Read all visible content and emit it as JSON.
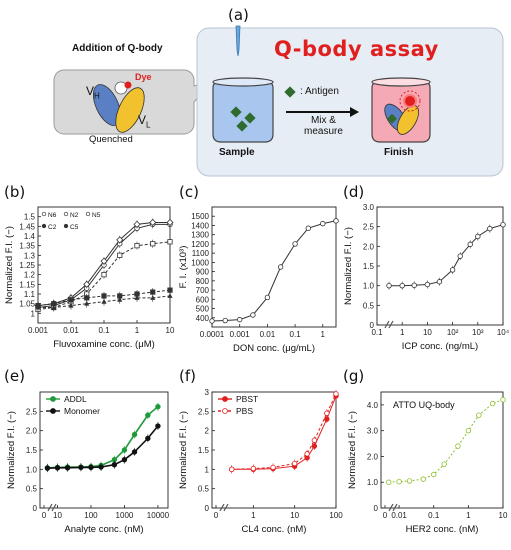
{
  "panel_labels": {
    "a": "(a)",
    "b": "(b)",
    "c": "(c)",
    "d": "(d)",
    "e": "(e)",
    "f": "(f)",
    "g": "(g)"
  },
  "schematic": {
    "addition_label": "Addition of Q-body",
    "vh": "V",
    "vh_sub": "H",
    "vl": "V",
    "vl_sub": "L",
    "dye": "Dye",
    "quenched": "Quenched",
    "title": "Q-body assay",
    "antigen": ": Antigen",
    "step": "Mix &",
    "step2": "measure",
    "sample": "Sample",
    "finish": "Finish",
    "colors": {
      "dye": "#e0201f",
      "vh": "#5b7fc4",
      "vl": "#f2c12e",
      "antigen": "#2f6b2f"
    }
  },
  "chart_data": [
    {
      "panel": "b",
      "type": "scatter",
      "xlabel": "Fluvoxamine conc. (μM)",
      "ylabel": "Normalized F.I. (−)",
      "xscale": "log",
      "xlim": [
        0.001,
        10
      ],
      "ylim": [
        0.95,
        1.55
      ],
      "xticks": [
        "0.001",
        "0.01",
        "0.1",
        "1",
        "10"
      ],
      "yticks": [
        "1",
        "1.05",
        "1.1",
        "1.15",
        "1.2",
        "1.25",
        "1.3",
        "1.35",
        "1.4",
        "1.45",
        "1.5"
      ],
      "legend_position": "top-left",
      "series": [
        {
          "name": "N6",
          "marker": "circle-open",
          "x": [
            0.001,
            0.003,
            0.01,
            0.03,
            0.1,
            0.3,
            1,
            3,
            10
          ],
          "y": [
            1.03,
            1.04,
            1.07,
            1.13,
            1.25,
            1.36,
            1.44,
            1.46,
            1.46
          ]
        },
        {
          "name": "N2",
          "marker": "diamond-open",
          "x": [
            0.001,
            0.003,
            0.01,
            0.03,
            0.1,
            0.3,
            1,
            3,
            10
          ],
          "y": [
            1.04,
            1.05,
            1.08,
            1.15,
            1.27,
            1.38,
            1.46,
            1.47,
            1.47
          ]
        },
        {
          "name": "N5",
          "marker": "square-open",
          "x": [
            0.001,
            0.003,
            0.01,
            0.03,
            0.1,
            0.3,
            1,
            3,
            10
          ],
          "y": [
            1.02,
            1.03,
            1.06,
            1.1,
            1.2,
            1.3,
            1.35,
            1.36,
            1.37
          ]
        },
        {
          "name": "C2",
          "marker": "triangle",
          "x": [
            0.001,
            0.003,
            0.01,
            0.03,
            0.1,
            0.3,
            1,
            3,
            10
          ],
          "y": [
            1.03,
            1.03,
            1.04,
            1.05,
            1.06,
            1.07,
            1.08,
            1.08,
            1.09
          ]
        },
        {
          "name": "C5",
          "marker": "square",
          "x": [
            0.001,
            0.003,
            0.01,
            0.03,
            0.1,
            0.3,
            1,
            3,
            10
          ],
          "y": [
            1.04,
            1.05,
            1.07,
            1.08,
            1.09,
            1.09,
            1.1,
            1.11,
            1.12
          ]
        }
      ]
    },
    {
      "panel": "c",
      "type": "line",
      "xlabel": "DON conc. (μg/mL)",
      "ylabel": "F. I. (x10³)",
      "xscale": "log",
      "xlim": [
        0.0001,
        3
      ],
      "ylim": [
        300,
        1600
      ],
      "xticks": [
        "0.0001",
        "0.001",
        "0.01",
        "0.1",
        "1"
      ],
      "yticks": [
        "400",
        "500",
        "600",
        "700",
        "800",
        "900",
        "1000",
        "1100",
        "1200",
        "1300",
        "1400",
        "1500"
      ],
      "x": [
        0.0001,
        0.0003,
        0.001,
        0.003,
        0.01,
        0.03,
        0.1,
        0.3,
        1,
        3
      ],
      "y": [
        365,
        370,
        380,
        430,
        620,
        950,
        1200,
        1370,
        1420,
        1450
      ]
    },
    {
      "panel": "d",
      "type": "scatter",
      "xlabel": "ICP conc. (ng/mL)",
      "ylabel": "Normalized F.I. (−)",
      "xscale": "log",
      "xlim": [
        0.1,
        10000
      ],
      "ylim": [
        0,
        3
      ],
      "xticks": [
        "0.1",
        "1",
        "10",
        "10²",
        "10³",
        "10⁴"
      ],
      "yticks": [
        "0",
        "0.5",
        "1.0",
        "1.5",
        "2.0",
        "2.5",
        "3.0"
      ],
      "axis_break": true,
      "x": [
        0.3,
        1,
        3,
        10,
        30,
        100,
        200,
        500,
        1000,
        3000,
        10000
      ],
      "y": [
        1.0,
        1.0,
        1.01,
        1.03,
        1.1,
        1.4,
        1.75,
        2.05,
        2.25,
        2.45,
        2.55
      ]
    },
    {
      "panel": "e",
      "type": "line",
      "xlabel": "Analyte conc. (nM)",
      "ylabel": "Normalized F.I. (−)",
      "xscale": "log",
      "xlim": [
        3,
        20000
      ],
      "ylim": [
        0,
        3
      ],
      "xticks": [
        "0",
        "10",
        "100",
        "1000",
        "10000"
      ],
      "yticks": [
        "0",
        "0.5",
        "1.0",
        "1.5",
        "2.0",
        "2.5"
      ],
      "axis_break": true,
      "legend_position": "top-left",
      "series": [
        {
          "name": "ADDL",
          "color": "#1e9a3a",
          "x": [
            5,
            10,
            20,
            50,
            100,
            200,
            500,
            1000,
            2000,
            5000,
            10000
          ],
          "y": [
            1.04,
            1.05,
            1.06,
            1.06,
            1.07,
            1.1,
            1.25,
            1.5,
            1.9,
            2.4,
            2.62
          ]
        },
        {
          "name": "Monomer",
          "color": "#111111",
          "x": [
            5,
            10,
            20,
            50,
            100,
            200,
            500,
            1000,
            2000,
            5000,
            10000
          ],
          "y": [
            1.03,
            1.04,
            1.04,
            1.05,
            1.05,
            1.06,
            1.12,
            1.25,
            1.45,
            1.8,
            2.12
          ]
        }
      ]
    },
    {
      "panel": "f",
      "type": "line",
      "xlabel": "CL4 conc. (nM)",
      "ylabel": "Normalized F.I. (−)",
      "xscale": "log",
      "xlim": [
        0.1,
        100
      ],
      "ylim": [
        0,
        3
      ],
      "xticks": [
        "0",
        "1",
        "10",
        "100"
      ],
      "yticks": [
        "0",
        "0.5",
        "1",
        "1.5",
        "2",
        "2.5",
        "3"
      ],
      "axis_break": true,
      "legend_position": "top-left",
      "series": [
        {
          "name": "PBST",
          "color": "#e0201f",
          "x": [
            0.3,
            1,
            3,
            10,
            20,
            30,
            60,
            100
          ],
          "y": [
            1.0,
            1.0,
            1.02,
            1.08,
            1.3,
            1.6,
            2.3,
            2.9
          ]
        },
        {
          "name": "PBS",
          "color": "#e0201f",
          "x": [
            0.3,
            1,
            3,
            10,
            20,
            30,
            60,
            100
          ],
          "y": [
            1.0,
            1.02,
            1.05,
            1.15,
            1.4,
            1.75,
            2.45,
            2.95
          ]
        }
      ]
    },
    {
      "panel": "g",
      "type": "line",
      "title": "ATTO UQ-body",
      "xlabel": "HER2 conc. (nM)",
      "ylabel": "Normalized F.I. (−)",
      "xscale": "log",
      "xlim": [
        0.003,
        10
      ],
      "ylim": [
        0,
        4.5
      ],
      "xticks": [
        "0",
        "0.01",
        "0.1",
        "1",
        "10"
      ],
      "yticks": [
        "0",
        "1.0",
        "2.0",
        "3.0",
        "4.0"
      ],
      "axis_break": true,
      "color": "#8bbf2a",
      "x": [
        0.005,
        0.01,
        0.02,
        0.05,
        0.1,
        0.2,
        0.5,
        1,
        2,
        5,
        10
      ],
      "y": [
        1.0,
        1.02,
        1.05,
        1.12,
        1.3,
        1.7,
        2.4,
        3.0,
        3.6,
        4.05,
        4.2
      ]
    }
  ]
}
